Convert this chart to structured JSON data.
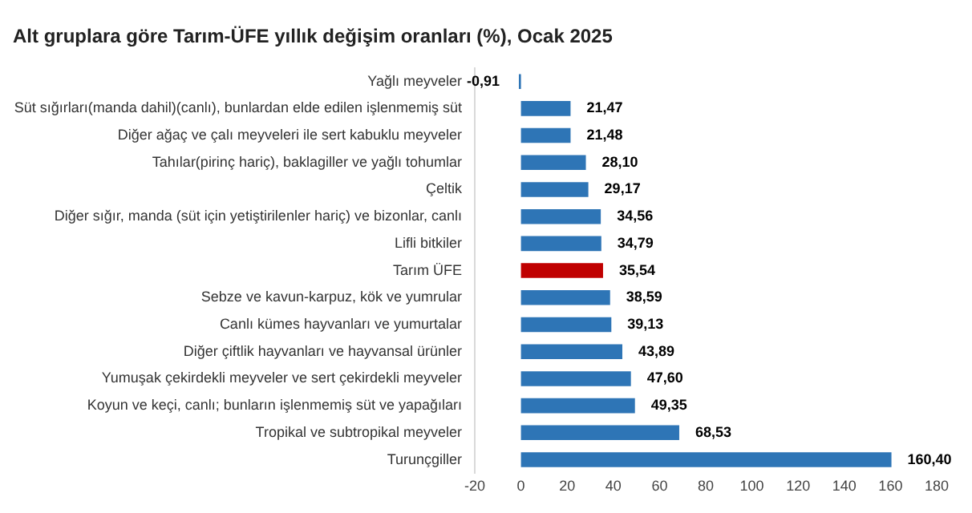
{
  "chart_data": {
    "type": "bar",
    "orientation": "horizontal",
    "title": "Alt gruplara göre Tarım-ÜFE yıllık değişim oranları (%), Ocak 2025",
    "categories": [
      "Yağlı meyveler",
      "Süt sığırları(manda dahil)(canlı), bunlardan elde edilen işlenmemiş süt",
      "Diğer ağaç ve çalı meyveleri ile sert kabuklu meyveler",
      "Tahılar(pirinç hariç), baklagiller ve yağlı tohumlar",
      "Çeltik",
      "Diğer sığır, manda (süt için yetiştirilenler hariç) ve bizonlar, canlı",
      "Lifli bitkiler",
      "Tarım ÜFE",
      "Sebze ve kavun-karpuz, kök ve yumrular",
      "Canlı kümes hayvanları ve yumurtalar",
      "Diğer çiftlik hayvanları ve hayvansal ürünler",
      "Yumuşak çekirdekli meyveler ve sert çekirdekli meyveler",
      "Koyun ve keçi, canlı; bunların işlenmemiş süt ve yapağıları",
      "Tropikal ve subtropikal meyveler",
      "Turunçgiller"
    ],
    "values": [
      -0.91,
      21.47,
      21.48,
      28.1,
      29.17,
      34.56,
      34.79,
      35.54,
      38.59,
      39.13,
      43.89,
      47.6,
      49.35,
      68.53,
      160.4
    ],
    "value_labels": [
      "-0,91",
      "21,47",
      "21,48",
      "28,10",
      "29,17",
      "34,56",
      "34,79",
      "35,54",
      "38,59",
      "39,13",
      "43,89",
      "47,60",
      "49,35",
      "68,53",
      "160,40"
    ],
    "colors": [
      "#2e75b6",
      "#2e75b6",
      "#2e75b6",
      "#2e75b6",
      "#2e75b6",
      "#2e75b6",
      "#2e75b6",
      "#c00000",
      "#2e75b6",
      "#2e75b6",
      "#2e75b6",
      "#2e75b6",
      "#2e75b6",
      "#2e75b6",
      "#2e75b6"
    ],
    "xlim": [
      -20,
      180
    ],
    "xticks": [
      -20,
      0,
      20,
      40,
      60,
      80,
      100,
      120,
      140,
      160,
      180
    ],
    "grid": false,
    "legend": false
  }
}
